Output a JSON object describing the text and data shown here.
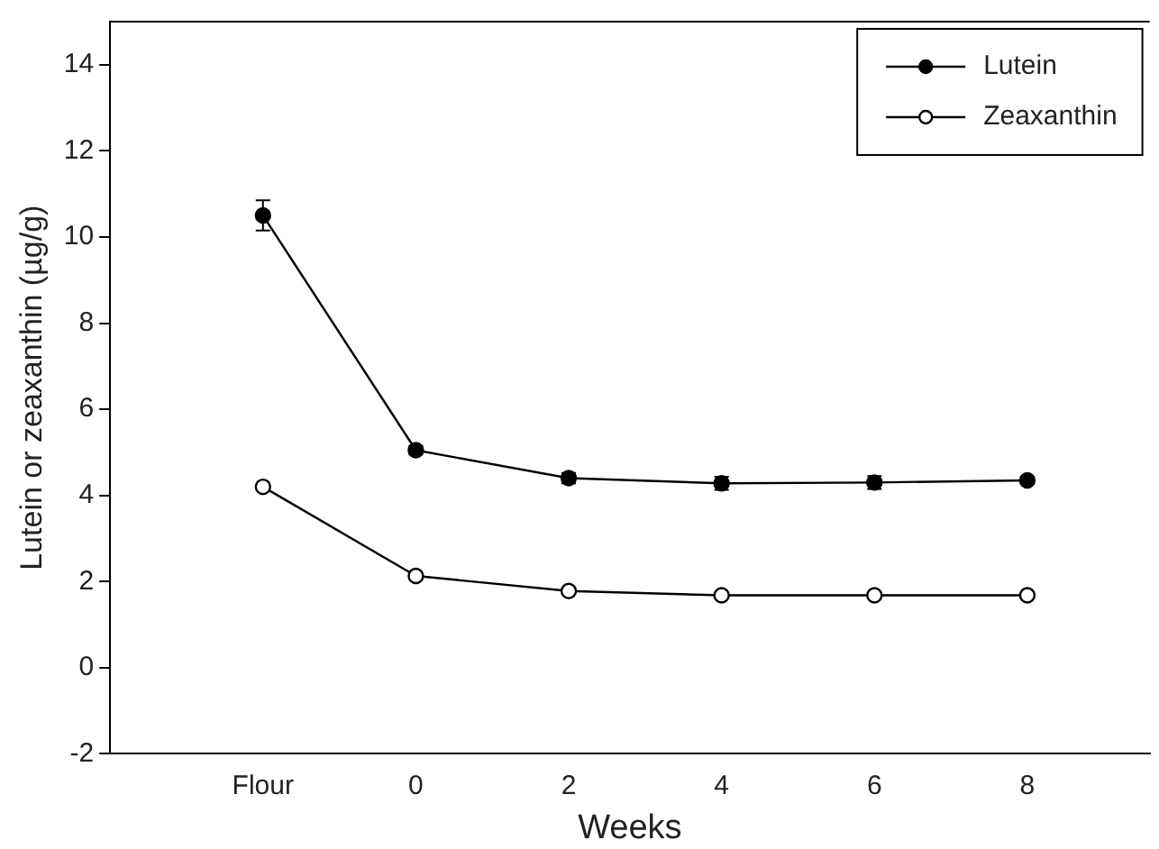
{
  "chart_data": {
    "type": "line",
    "xlabel": "Weeks",
    "ylabel": "Lutein or zeaxanthin (µg/g)",
    "categories": [
      "Flour",
      "0",
      "2",
      "4",
      "6",
      "8"
    ],
    "series": [
      {
        "name": "Lutein",
        "color": "#000000",
        "values": [
          10.5,
          5.05,
          4.4,
          4.28,
          4.3,
          4.35
        ],
        "errors": [
          0.35,
          0.1,
          0.12,
          0.15,
          0.15,
          0.08
        ]
      },
      {
        "name": "Zeaxanthin",
        "color": "#000000",
        "values": [
          4.2,
          2.13,
          1.78,
          1.68,
          1.68,
          1.68
        ]
      }
    ],
    "ylim": [
      -2,
      15
    ],
    "yticks": [
      -2,
      0,
      2,
      4,
      6,
      8,
      10,
      12,
      14
    ],
    "grid": false,
    "legend": "top right",
    "marker": "circle",
    "line_style": "solid"
  }
}
